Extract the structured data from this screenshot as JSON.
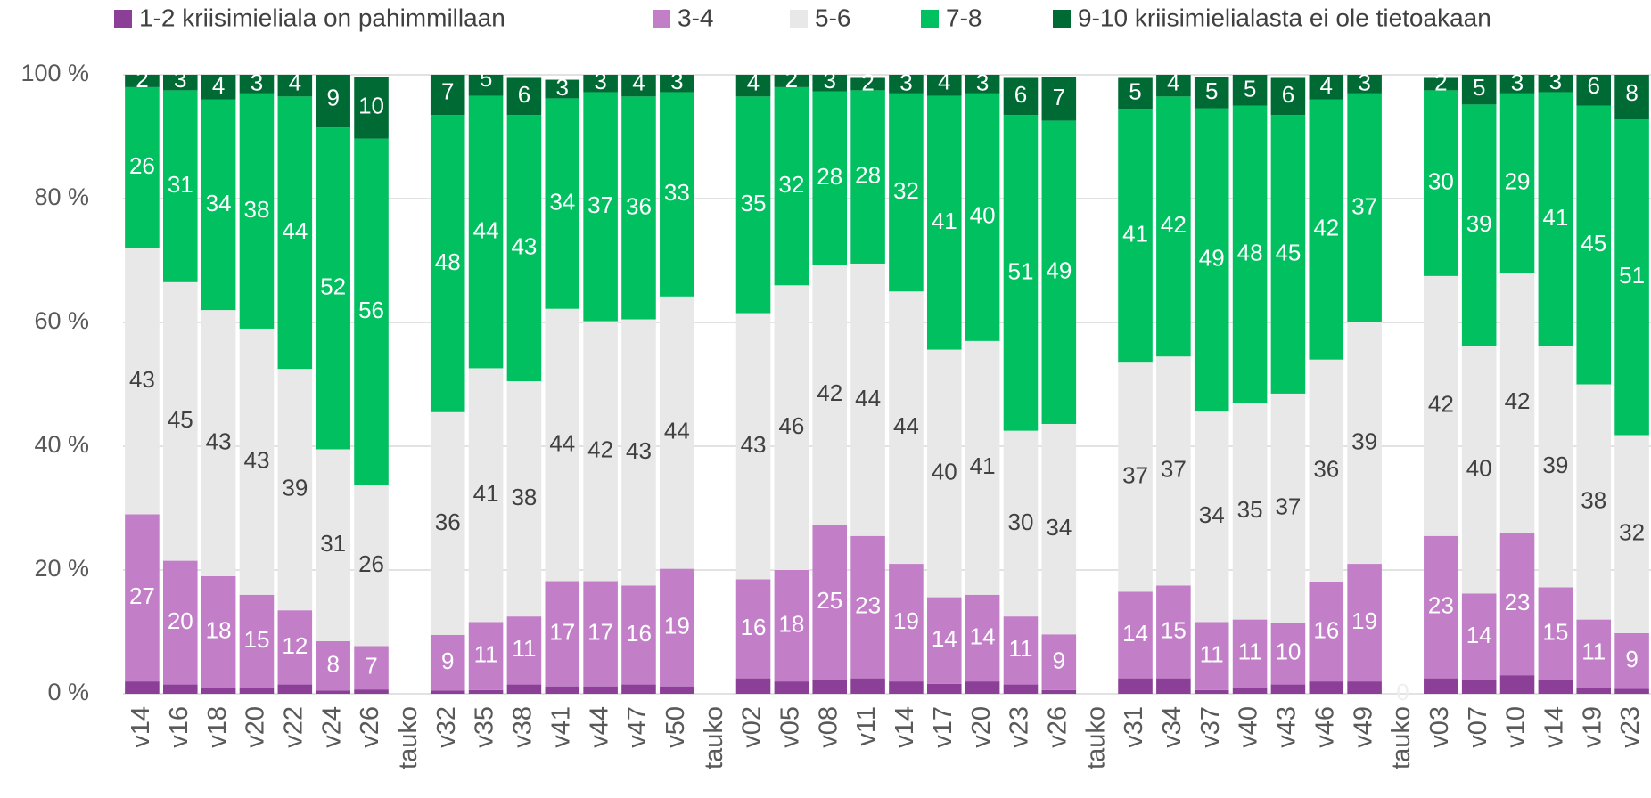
{
  "chart_data": {
    "type": "stacked_bar_100",
    "categories": [
      "v14",
      "v16",
      "v18",
      "v20",
      "v22",
      "v24",
      "v26",
      "tauko",
      "v32",
      "v35",
      "v38",
      "v41",
      "v44",
      "v47",
      "v50",
      "tauko",
      "v02",
      "v05",
      "v08",
      "v11",
      "v14",
      "v17",
      "v20",
      "v23",
      "v26",
      "tauko",
      "v31",
      "v34",
      "v37",
      "v40",
      "v43",
      "v46",
      "v49",
      "tauko",
      "v03",
      "v07",
      "v10",
      "v14",
      "v19",
      "v23"
    ],
    "series": [
      {
        "name": "1-2 kriisimieliala on pahimmillaan",
        "color": "#8b3f96",
        "values": [
          2,
          1.5,
          1,
          1,
          1.5,
          0.5,
          0.7,
          null,
          0.5,
          0.6,
          1.5,
          1.2,
          1.2,
          1.5,
          1.2,
          null,
          2.5,
          2,
          2.3,
          2.5,
          2,
          1.6,
          2,
          1.5,
          0.6,
          null,
          2.5,
          2.5,
          0.6,
          1,
          1.5,
          2,
          2,
          null,
          2.5,
          2.2,
          3,
          2.2,
          1,
          0.8
        ]
      },
      {
        "name": "3-4",
        "color": "#c27fc8",
        "values": [
          27,
          20,
          18,
          15,
          12,
          8,
          7,
          null,
          9,
          11,
          11,
          17,
          17,
          16,
          19,
          null,
          16,
          18,
          25,
          23,
          19,
          14,
          14,
          11,
          9,
          null,
          14,
          15,
          11,
          11,
          10,
          16,
          19,
          0,
          23,
          14,
          23,
          15,
          11,
          9
        ]
      },
      {
        "name": "5-6",
        "color": "#e8e8e8",
        "values": [
          43,
          45,
          43,
          43,
          39,
          31,
          26,
          null,
          36,
          41,
          38,
          44,
          42,
          43,
          44,
          null,
          43,
          46,
          42,
          44,
          44,
          40,
          41,
          30,
          34,
          null,
          37,
          37,
          34,
          35,
          37,
          36,
          39,
          null,
          42,
          40,
          42,
          39,
          38,
          32
        ]
      },
      {
        "name": "7-8",
        "color": "#00c060",
        "values": [
          26,
          31,
          34,
          38,
          44,
          52,
          56,
          null,
          48,
          44,
          43,
          34,
          37,
          36,
          33,
          null,
          35,
          32,
          28,
          28,
          32,
          41,
          40,
          51,
          49,
          null,
          41,
          42,
          49,
          48,
          45,
          42,
          37,
          null,
          30,
          39,
          29,
          41,
          45,
          51
        ]
      },
      {
        "name": "9-10 kriisimielialasta ei ole tietoakaan",
        "color": "#006a35",
        "values": [
          2,
          3,
          4,
          3,
          4,
          9,
          10,
          null,
          7,
          5,
          6,
          3,
          3,
          4,
          3,
          null,
          4,
          2,
          3,
          2,
          3,
          4,
          3,
          6,
          7,
          null,
          5,
          4,
          5,
          5,
          6,
          4,
          3,
          null,
          2,
          5,
          3,
          3,
          6,
          8
        ]
      }
    ],
    "ylim": [
      0,
      100
    ],
    "yticks": [
      {
        "value": 0,
        "label": "0 %"
      },
      {
        "value": 20,
        "label": "20 %"
      },
      {
        "value": 40,
        "label": "40 %"
      },
      {
        "value": 60,
        "label": "60 %"
      },
      {
        "value": 80,
        "label": "80 %"
      },
      {
        "value": 100,
        "label": "100 %"
      }
    ],
    "grid": true
  }
}
